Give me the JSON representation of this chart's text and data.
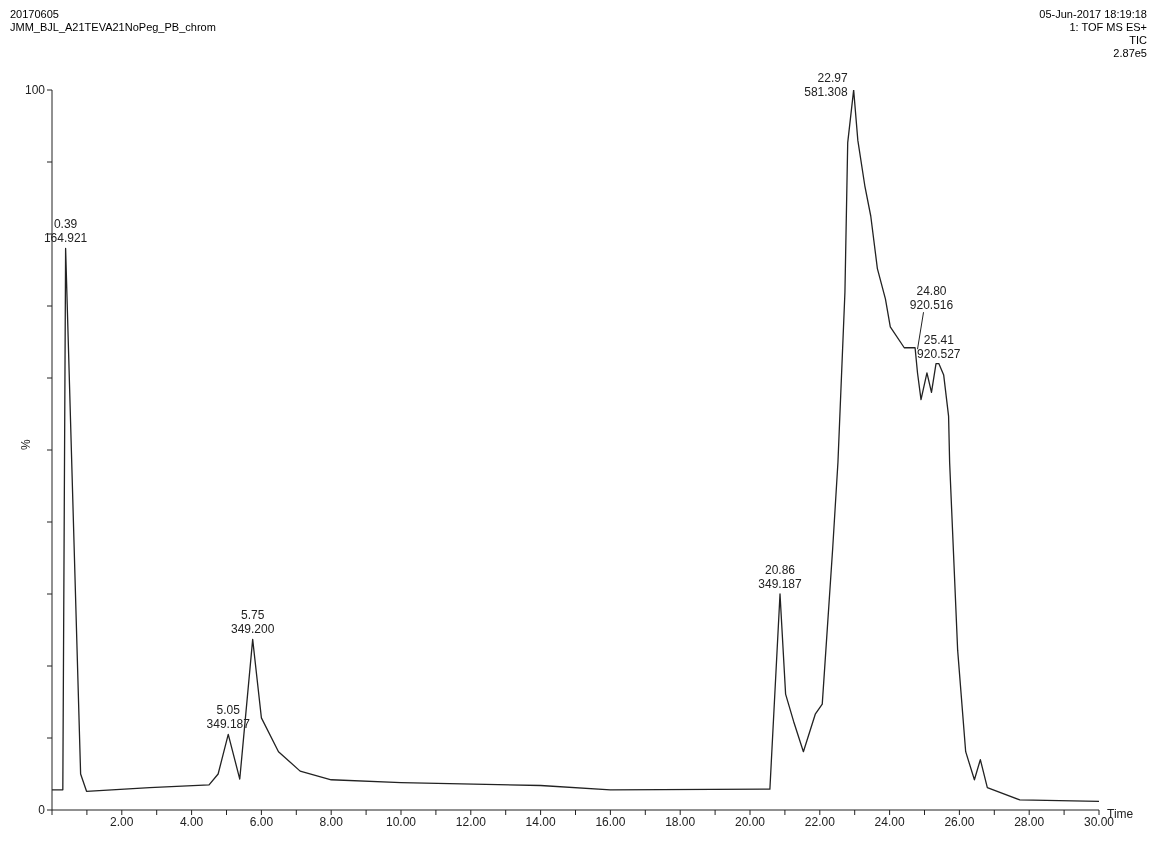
{
  "chart_data": {
    "type": "line",
    "title": "20170605",
    "subtitle": "JMM_BJL_A21TEVA21NoPeg_PB_chrom",
    "xlabel": "Time",
    "ylabel": "%",
    "annotations": [
      "05-Jun-2017  18:19:18",
      "1: TOF MS ES+",
      "TIC",
      "2.87e5",
      {
        "text": "0.39\n164.921",
        "x": 0.39,
        "y": 78
      },
      {
        "text": "5.05\n349.187",
        "x": 5.05,
        "y": 10.5
      },
      {
        "text": "5.75\n349.200",
        "x": 5.75,
        "y": 23.7
      },
      {
        "text": "20.86\n349.187",
        "x": 20.86,
        "y": 30
      },
      {
        "text": "22.97\n581.308",
        "x": 22.97,
        "y": 100
      },
      {
        "text": "24.80\n920.516",
        "x": 24.8,
        "y": 64
      },
      {
        "text": "25.41\n920.527",
        "x": 25.41,
        "y": 62
      }
    ],
    "x": [
      0,
      0.31,
      0.39,
      0.82,
      0.99,
      2.8,
      4.5,
      4.76,
      5.05,
      5.38,
      5.75,
      6.0,
      6.49,
      7.11,
      8.0,
      10,
      14,
      16,
      20.57,
      20.86,
      21.02,
      21.25,
      21.53,
      21.87,
      22.07,
      22.37,
      22.52,
      22.72,
      22.8,
      22.97,
      23.09,
      23.29,
      23.46,
      23.65,
      23.88,
      24.02,
      24.42,
      24.73,
      24.8,
      24.9,
      25.07,
      25.2,
      25.33,
      25.41,
      25.55,
      25.69,
      25.72,
      25.95,
      26.18,
      26.43,
      26.6,
      26.8,
      27.73,
      30
    ],
    "series": [
      {
        "color": "#222222",
        "values": [
          2.8,
          2.8,
          78,
          5,
          2.6,
          3.1,
          3.5,
          5.0,
          10.5,
          4.3,
          23.7,
          12.8,
          8.1,
          5.4,
          4.2,
          3.8,
          3.4,
          2.8,
          2.9,
          30,
          16.1,
          12.3,
          8.1,
          13.3,
          14.7,
          36.4,
          48.3,
          71.9,
          92.7,
          100,
          93,
          86.7,
          82.5,
          75.2,
          71,
          67.1,
          64.2,
          64.2,
          60.7,
          57,
          60.7,
          58,
          62,
          62,
          60.4,
          54.7,
          48.3,
          22.2,
          8.1,
          4.2,
          7.0,
          3.1,
          1.4,
          1.2
        ]
      }
    ],
    "xlim": [
      0,
      30
    ],
    "ylim": [
      0,
      100
    ],
    "xticks": [
      {
        "value": 0,
        "label": null
      },
      {
        "value": 1,
        "label": null
      },
      {
        "value": 2,
        "label": "2.00"
      },
      {
        "value": 3,
        "label": null
      },
      {
        "value": 4,
        "label": "4.00"
      },
      {
        "value": 5,
        "label": null
      },
      {
        "value": 6,
        "label": "6.00"
      },
      {
        "value": 7,
        "label": null
      },
      {
        "value": 8,
        "label": "8.00"
      },
      {
        "value": 9,
        "label": null
      },
      {
        "value": 10,
        "label": "10.00"
      },
      {
        "value": 11,
        "label": null
      },
      {
        "value": 12,
        "label": "12.00"
      },
      {
        "value": 13,
        "label": null
      },
      {
        "value": 14,
        "label": "14.00"
      },
      {
        "value": 15,
        "label": null
      },
      {
        "value": 16,
        "label": "16.00"
      },
      {
        "value": 17,
        "label": null
      },
      {
        "value": 18,
        "label": "18.00"
      },
      {
        "value": 19,
        "label": null
      },
      {
        "value": 20,
        "label": "20.00"
      },
      {
        "value": 21,
        "label": null
      },
      {
        "value": 22,
        "label": "22.00"
      },
      {
        "value": 23,
        "label": null
      },
      {
        "value": 24,
        "label": "24.00"
      },
      {
        "value": 25,
        "label": null
      },
      {
        "value": 26,
        "label": "26.00"
      },
      {
        "value": 27,
        "label": null
      },
      {
        "value": 28,
        "label": "28.00"
      },
      {
        "value": 29,
        "label": null
      },
      {
        "value": 30,
        "label": "30.00"
      }
    ],
    "yticks": [
      0,
      {
        "value": 10,
        "label": null
      },
      {
        "value": 20,
        "label": null
      },
      {
        "value": 30,
        "label": null
      },
      {
        "value": 40,
        "label": null
      },
      {
        "value": 50,
        "label": null
      },
      {
        "value": 60,
        "label": null
      },
      {
        "value": 70,
        "label": null
      },
      {
        "value": 80,
        "label": null
      },
      {
        "value": 90,
        "label": null
      },
      100
    ],
    "grid": false,
    "legend": false,
    "marker": "none",
    "line_style": "solid"
  }
}
